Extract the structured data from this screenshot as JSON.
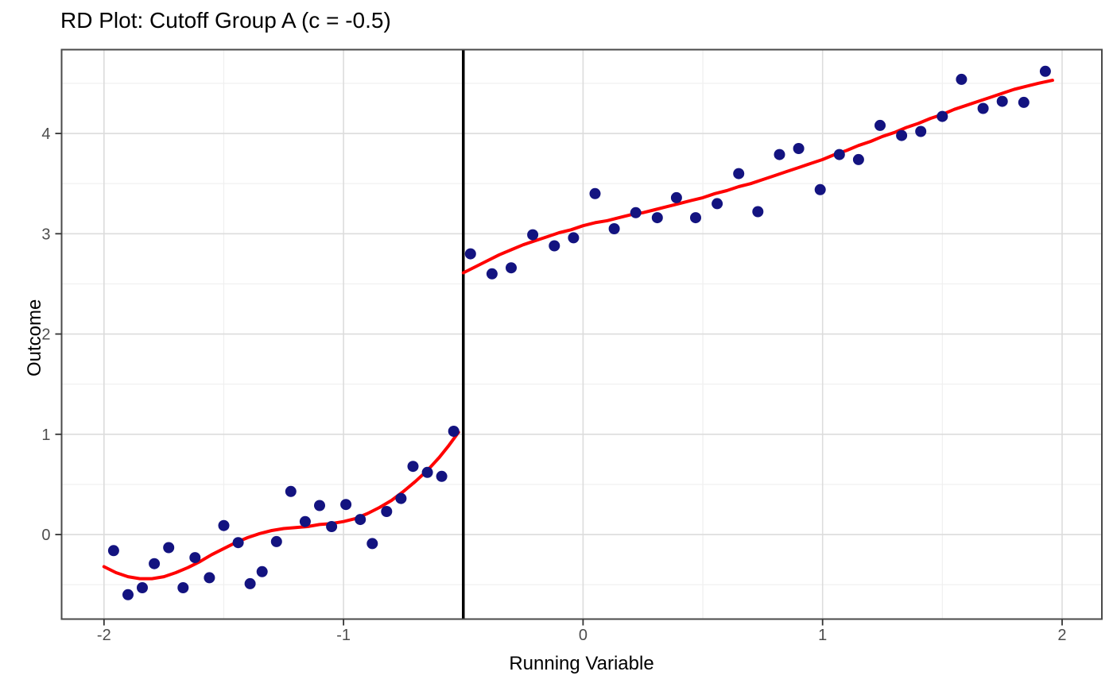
{
  "chart_data": {
    "type": "scatter",
    "title": "RD Plot: Cutoff Group A (c = -0.5)",
    "xlabel": "Running Variable",
    "ylabel": "Outcome",
    "x_ticks": [
      -2,
      -1,
      0,
      1,
      2
    ],
    "y_ticks": [
      0,
      1,
      2,
      3,
      4
    ],
    "x_minor": [
      -1.5,
      -0.5,
      0.5,
      1.5
    ],
    "y_minor": [
      -0.5,
      0.5,
      1.5,
      2.5,
      3.5,
      4.5
    ],
    "xlim": [
      -2.177,
      2.166
    ],
    "ylim": [
      -0.843,
      4.836
    ],
    "cutoff_x": -0.5,
    "grid": "major+minor",
    "legend": "none",
    "colors": {
      "point": "#131380",
      "smooth": "#FF0000",
      "cutoff": "#000000",
      "grid_major": "#DCDCDC",
      "grid_minor": "#EFEFEF",
      "panel_border": "#4A4A4A",
      "tick_mark": "#333333",
      "tick_label": "#4D4D4D",
      "text": "#000000",
      "background": "#FFFFFF"
    },
    "series": [
      {
        "name": "observations_left_of_cutoff",
        "type": "scatter",
        "points": [
          [
            -1.96,
            -0.16
          ],
          [
            -1.9,
            -0.6
          ],
          [
            -1.84,
            -0.53
          ],
          [
            -1.79,
            -0.29
          ],
          [
            -1.73,
            -0.13
          ],
          [
            -1.67,
            -0.53
          ],
          [
            -1.62,
            -0.23
          ],
          [
            -1.56,
            -0.43
          ],
          [
            -1.5,
            0.09
          ],
          [
            -1.44,
            -0.08
          ],
          [
            -1.39,
            -0.49
          ],
          [
            -1.34,
            -0.37
          ],
          [
            -1.28,
            -0.07
          ],
          [
            -1.22,
            0.43
          ],
          [
            -1.16,
            0.13
          ],
          [
            -1.1,
            0.29
          ],
          [
            -1.05,
            0.08
          ],
          [
            -0.99,
            0.3
          ],
          [
            -0.93,
            0.15
          ],
          [
            -0.88,
            -0.09
          ],
          [
            -0.82,
            0.23
          ],
          [
            -0.76,
            0.36
          ],
          [
            -0.71,
            0.68
          ],
          [
            -0.65,
            0.62
          ],
          [
            -0.59,
            0.58
          ],
          [
            -0.54,
            1.03
          ]
        ]
      },
      {
        "name": "observations_right_of_cutoff",
        "type": "scatter",
        "points": [
          [
            -0.47,
            2.8
          ],
          [
            -0.38,
            2.6
          ],
          [
            -0.3,
            2.66
          ],
          [
            -0.21,
            2.99
          ],
          [
            -0.12,
            2.88
          ],
          [
            -0.04,
            2.96
          ],
          [
            0.05,
            3.4
          ],
          [
            0.13,
            3.05
          ],
          [
            0.22,
            3.21
          ],
          [
            0.31,
            3.16
          ],
          [
            0.39,
            3.36
          ],
          [
            0.47,
            3.16
          ],
          [
            0.56,
            3.3
          ],
          [
            0.65,
            3.6
          ],
          [
            0.73,
            3.22
          ],
          [
            0.82,
            3.79
          ],
          [
            0.9,
            3.85
          ],
          [
            0.99,
            3.44
          ],
          [
            1.07,
            3.79
          ],
          [
            1.15,
            3.74
          ],
          [
            1.24,
            4.08
          ],
          [
            1.33,
            3.98
          ],
          [
            1.41,
            4.02
          ],
          [
            1.5,
            4.17
          ],
          [
            1.58,
            4.54
          ],
          [
            1.67,
            4.25
          ],
          [
            1.75,
            4.32
          ],
          [
            1.84,
            4.31
          ],
          [
            1.93,
            4.62
          ]
        ]
      },
      {
        "name": "loess_fit_left",
        "type": "line",
        "points": [
          [
            -2.0,
            -0.32
          ],
          [
            -1.95,
            -0.38
          ],
          [
            -1.9,
            -0.42
          ],
          [
            -1.85,
            -0.44
          ],
          [
            -1.8,
            -0.44
          ],
          [
            -1.75,
            -0.42
          ],
          [
            -1.7,
            -0.38
          ],
          [
            -1.65,
            -0.33
          ],
          [
            -1.6,
            -0.27
          ],
          [
            -1.55,
            -0.2
          ],
          [
            -1.5,
            -0.14
          ],
          [
            -1.45,
            -0.08
          ],
          [
            -1.4,
            -0.03
          ],
          [
            -1.35,
            0.01
          ],
          [
            -1.3,
            0.04
          ],
          [
            -1.25,
            0.06
          ],
          [
            -1.2,
            0.07
          ],
          [
            -1.15,
            0.08
          ],
          [
            -1.1,
            0.1
          ],
          [
            -1.05,
            0.11
          ],
          [
            -1.0,
            0.13
          ],
          [
            -0.95,
            0.16
          ],
          [
            -0.9,
            0.21
          ],
          [
            -0.85,
            0.27
          ],
          [
            -0.8,
            0.34
          ],
          [
            -0.75,
            0.43
          ],
          [
            -0.7,
            0.53
          ],
          [
            -0.65,
            0.64
          ],
          [
            -0.6,
            0.77
          ],
          [
            -0.56,
            0.89
          ],
          [
            -0.52,
            1.02
          ]
        ]
      },
      {
        "name": "loess_fit_right",
        "type": "line",
        "points": [
          [
            -0.5,
            2.61
          ],
          [
            -0.45,
            2.67
          ],
          [
            -0.4,
            2.73
          ],
          [
            -0.35,
            2.79
          ],
          [
            -0.3,
            2.84
          ],
          [
            -0.25,
            2.89
          ],
          [
            -0.2,
            2.93
          ],
          [
            -0.15,
            2.97
          ],
          [
            -0.1,
            3.01
          ],
          [
            -0.05,
            3.04
          ],
          [
            0.0,
            3.08
          ],
          [
            0.05,
            3.11
          ],
          [
            0.1,
            3.13
          ],
          [
            0.15,
            3.16
          ],
          [
            0.2,
            3.19
          ],
          [
            0.25,
            3.21
          ],
          [
            0.3,
            3.24
          ],
          [
            0.35,
            3.27
          ],
          [
            0.4,
            3.3
          ],
          [
            0.45,
            3.33
          ],
          [
            0.5,
            3.36
          ],
          [
            0.55,
            3.4
          ],
          [
            0.6,
            3.43
          ],
          [
            0.65,
            3.47
          ],
          [
            0.7,
            3.5
          ],
          [
            0.75,
            3.54
          ],
          [
            0.8,
            3.58
          ],
          [
            0.85,
            3.62
          ],
          [
            0.9,
            3.66
          ],
          [
            0.95,
            3.7
          ],
          [
            1.0,
            3.74
          ],
          [
            1.05,
            3.79
          ],
          [
            1.1,
            3.83
          ],
          [
            1.15,
            3.88
          ],
          [
            1.2,
            3.92
          ],
          [
            1.25,
            3.97
          ],
          [
            1.3,
            4.01
          ],
          [
            1.35,
            4.06
          ],
          [
            1.4,
            4.1
          ],
          [
            1.45,
            4.15
          ],
          [
            1.5,
            4.19
          ],
          [
            1.55,
            4.24
          ],
          [
            1.6,
            4.28
          ],
          [
            1.65,
            4.32
          ],
          [
            1.7,
            4.36
          ],
          [
            1.75,
            4.4
          ],
          [
            1.8,
            4.44
          ],
          [
            1.85,
            4.47
          ],
          [
            1.9,
            4.5
          ],
          [
            1.96,
            4.53
          ]
        ]
      }
    ]
  }
}
